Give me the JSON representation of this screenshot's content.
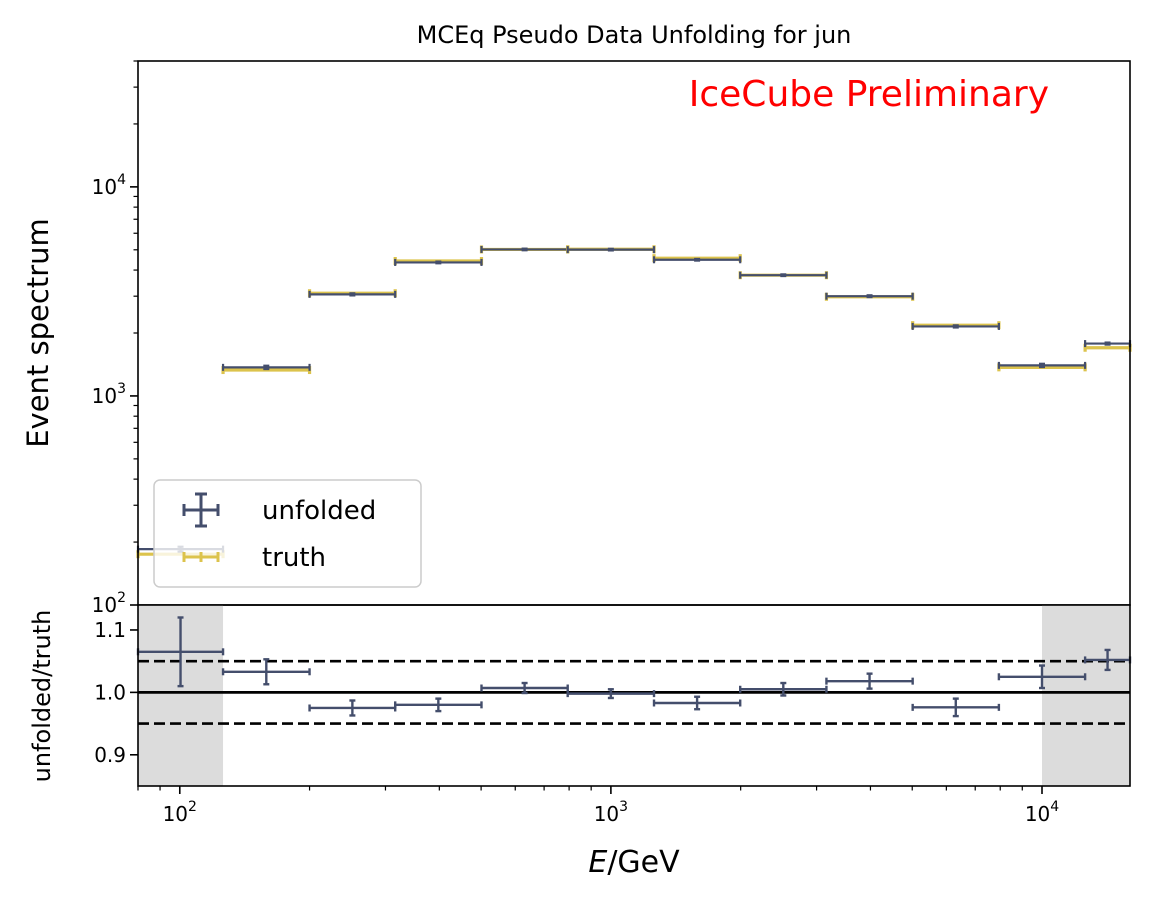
{
  "chart_data": [
    {
      "type": "line",
      "panel": "main",
      "title": "MCEq Pseudo Data Unfolding for jun",
      "annotation": "IceCube Preliminary",
      "ylabel": "Event spectrum",
      "xscale": "log",
      "yscale": "log",
      "xlim": [
        80,
        16000
      ],
      "ylim": [
        100,
        40000
      ],
      "yticks": [
        {
          "value": 100,
          "base": "10",
          "exp": "2"
        },
        {
          "value": 1000,
          "base": "10",
          "exp": "3"
        },
        {
          "value": 10000,
          "base": "10",
          "exp": "4"
        }
      ],
      "bin_edges": [
        80,
        126,
        200,
        316,
        501,
        794,
        1259,
        1995,
        3162,
        5012,
        7943,
        12589,
        16000
      ],
      "series": [
        {
          "name": "unfolded",
          "style": "errorbar",
          "color": "#444e6c",
          "values": [
            185,
            1370,
            3060,
            4350,
            5020,
            5010,
            4480,
            3780,
            3000,
            2150,
            1400,
            1780
          ],
          "errors": [
            5,
            25,
            35,
            40,
            45,
            45,
            40,
            35,
            30,
            25,
            25,
            20
          ]
        },
        {
          "name": "truth",
          "style": "step",
          "color": "#dcc34c",
          "values": [
            175,
            1330,
            3100,
            4420,
            5020,
            5030,
            4560,
            3780,
            2980,
            2180,
            1370,
            1700
          ]
        }
      ],
      "legend": {
        "placement": "lower-left",
        "entries": [
          "unfolded",
          "truth"
        ]
      }
    },
    {
      "type": "scatter",
      "panel": "ratio",
      "ylabel": "unfolded/truth",
      "xlabel_italic": "E",
      "xlabel_unit": "/GeV",
      "xscale": "log",
      "xlim": [
        80,
        16000
      ],
      "ylim": [
        0.85,
        1.14
      ],
      "xticks": [
        {
          "value": 100,
          "base": "10",
          "exp": "2"
        },
        {
          "value": 1000,
          "base": "10",
          "exp": "3"
        },
        {
          "value": 10000,
          "base": "10",
          "exp": "4"
        }
      ],
      "yticks": [
        "0.9",
        "1.0",
        "1.1"
      ],
      "reference_line": 1.0,
      "band": [
        0.95,
        1.05
      ],
      "shaded_x_ranges": [
        [
          80,
          126
        ],
        [
          10000,
          16000
        ]
      ],
      "bin_edges": [
        80,
        126,
        200,
        316,
        501,
        794,
        1259,
        1995,
        3162,
        5012,
        7943,
        12589,
        16000
      ],
      "values": [
        1.065,
        1.033,
        0.975,
        0.98,
        1.007,
        0.998,
        0.983,
        1.005,
        1.018,
        0.976,
        1.025,
        1.052
      ],
      "errors": [
        0.055,
        0.02,
        0.012,
        0.01,
        0.008,
        0.007,
        0.01,
        0.01,
        0.012,
        0.014,
        0.018,
        0.016
      ],
      "color": "#444e6c"
    }
  ]
}
